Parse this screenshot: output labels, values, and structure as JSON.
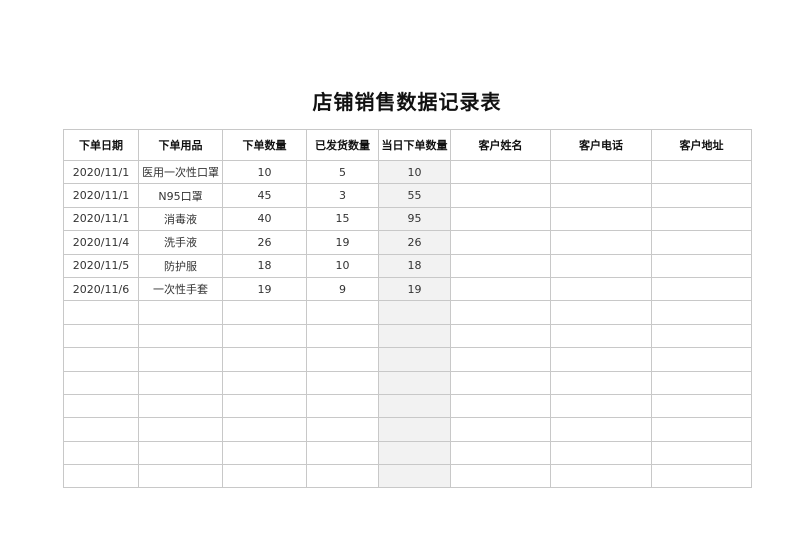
{
  "title": "店铺销售数据记录表",
  "columns": [
    "下单日期",
    "下单用品",
    "下单数量",
    "已发货数量",
    "当日下单数量",
    "客户姓名",
    "客户电话",
    "客户地址"
  ],
  "rows": [
    [
      "2020/11/1",
      "医用一次性口罩",
      "10",
      "5",
      "10",
      "",
      "",
      ""
    ],
    [
      "2020/11/1",
      "N95口罩",
      "45",
      "3",
      "55",
      "",
      "",
      ""
    ],
    [
      "2020/11/1",
      "消毒液",
      "40",
      "15",
      "95",
      "",
      "",
      ""
    ],
    [
      "2020/11/4",
      "洗手液",
      "26",
      "19",
      "26",
      "",
      "",
      ""
    ],
    [
      "2020/11/5",
      "防护服",
      "18",
      "10",
      "18",
      "",
      "",
      ""
    ],
    [
      "2020/11/6",
      "一次性手套",
      "19",
      "9",
      "19",
      "",
      "",
      ""
    ],
    [
      "",
      "",
      "",
      "",
      "",
      "",
      "",
      ""
    ],
    [
      "",
      "",
      "",
      "",
      "",
      "",
      "",
      ""
    ],
    [
      "",
      "",
      "",
      "",
      "",
      "",
      "",
      ""
    ],
    [
      "",
      "",
      "",
      "",
      "",
      "",
      "",
      ""
    ],
    [
      "",
      "",
      "",
      "",
      "",
      "",
      "",
      ""
    ],
    [
      "",
      "",
      "",
      "",
      "",
      "",
      "",
      ""
    ],
    [
      "",
      "",
      "",
      "",
      "",
      "",
      "",
      ""
    ],
    [
      "",
      "",
      "",
      "",
      "",
      "",
      "",
      ""
    ]
  ],
  "highlight_column_color": "#f2f2f2"
}
